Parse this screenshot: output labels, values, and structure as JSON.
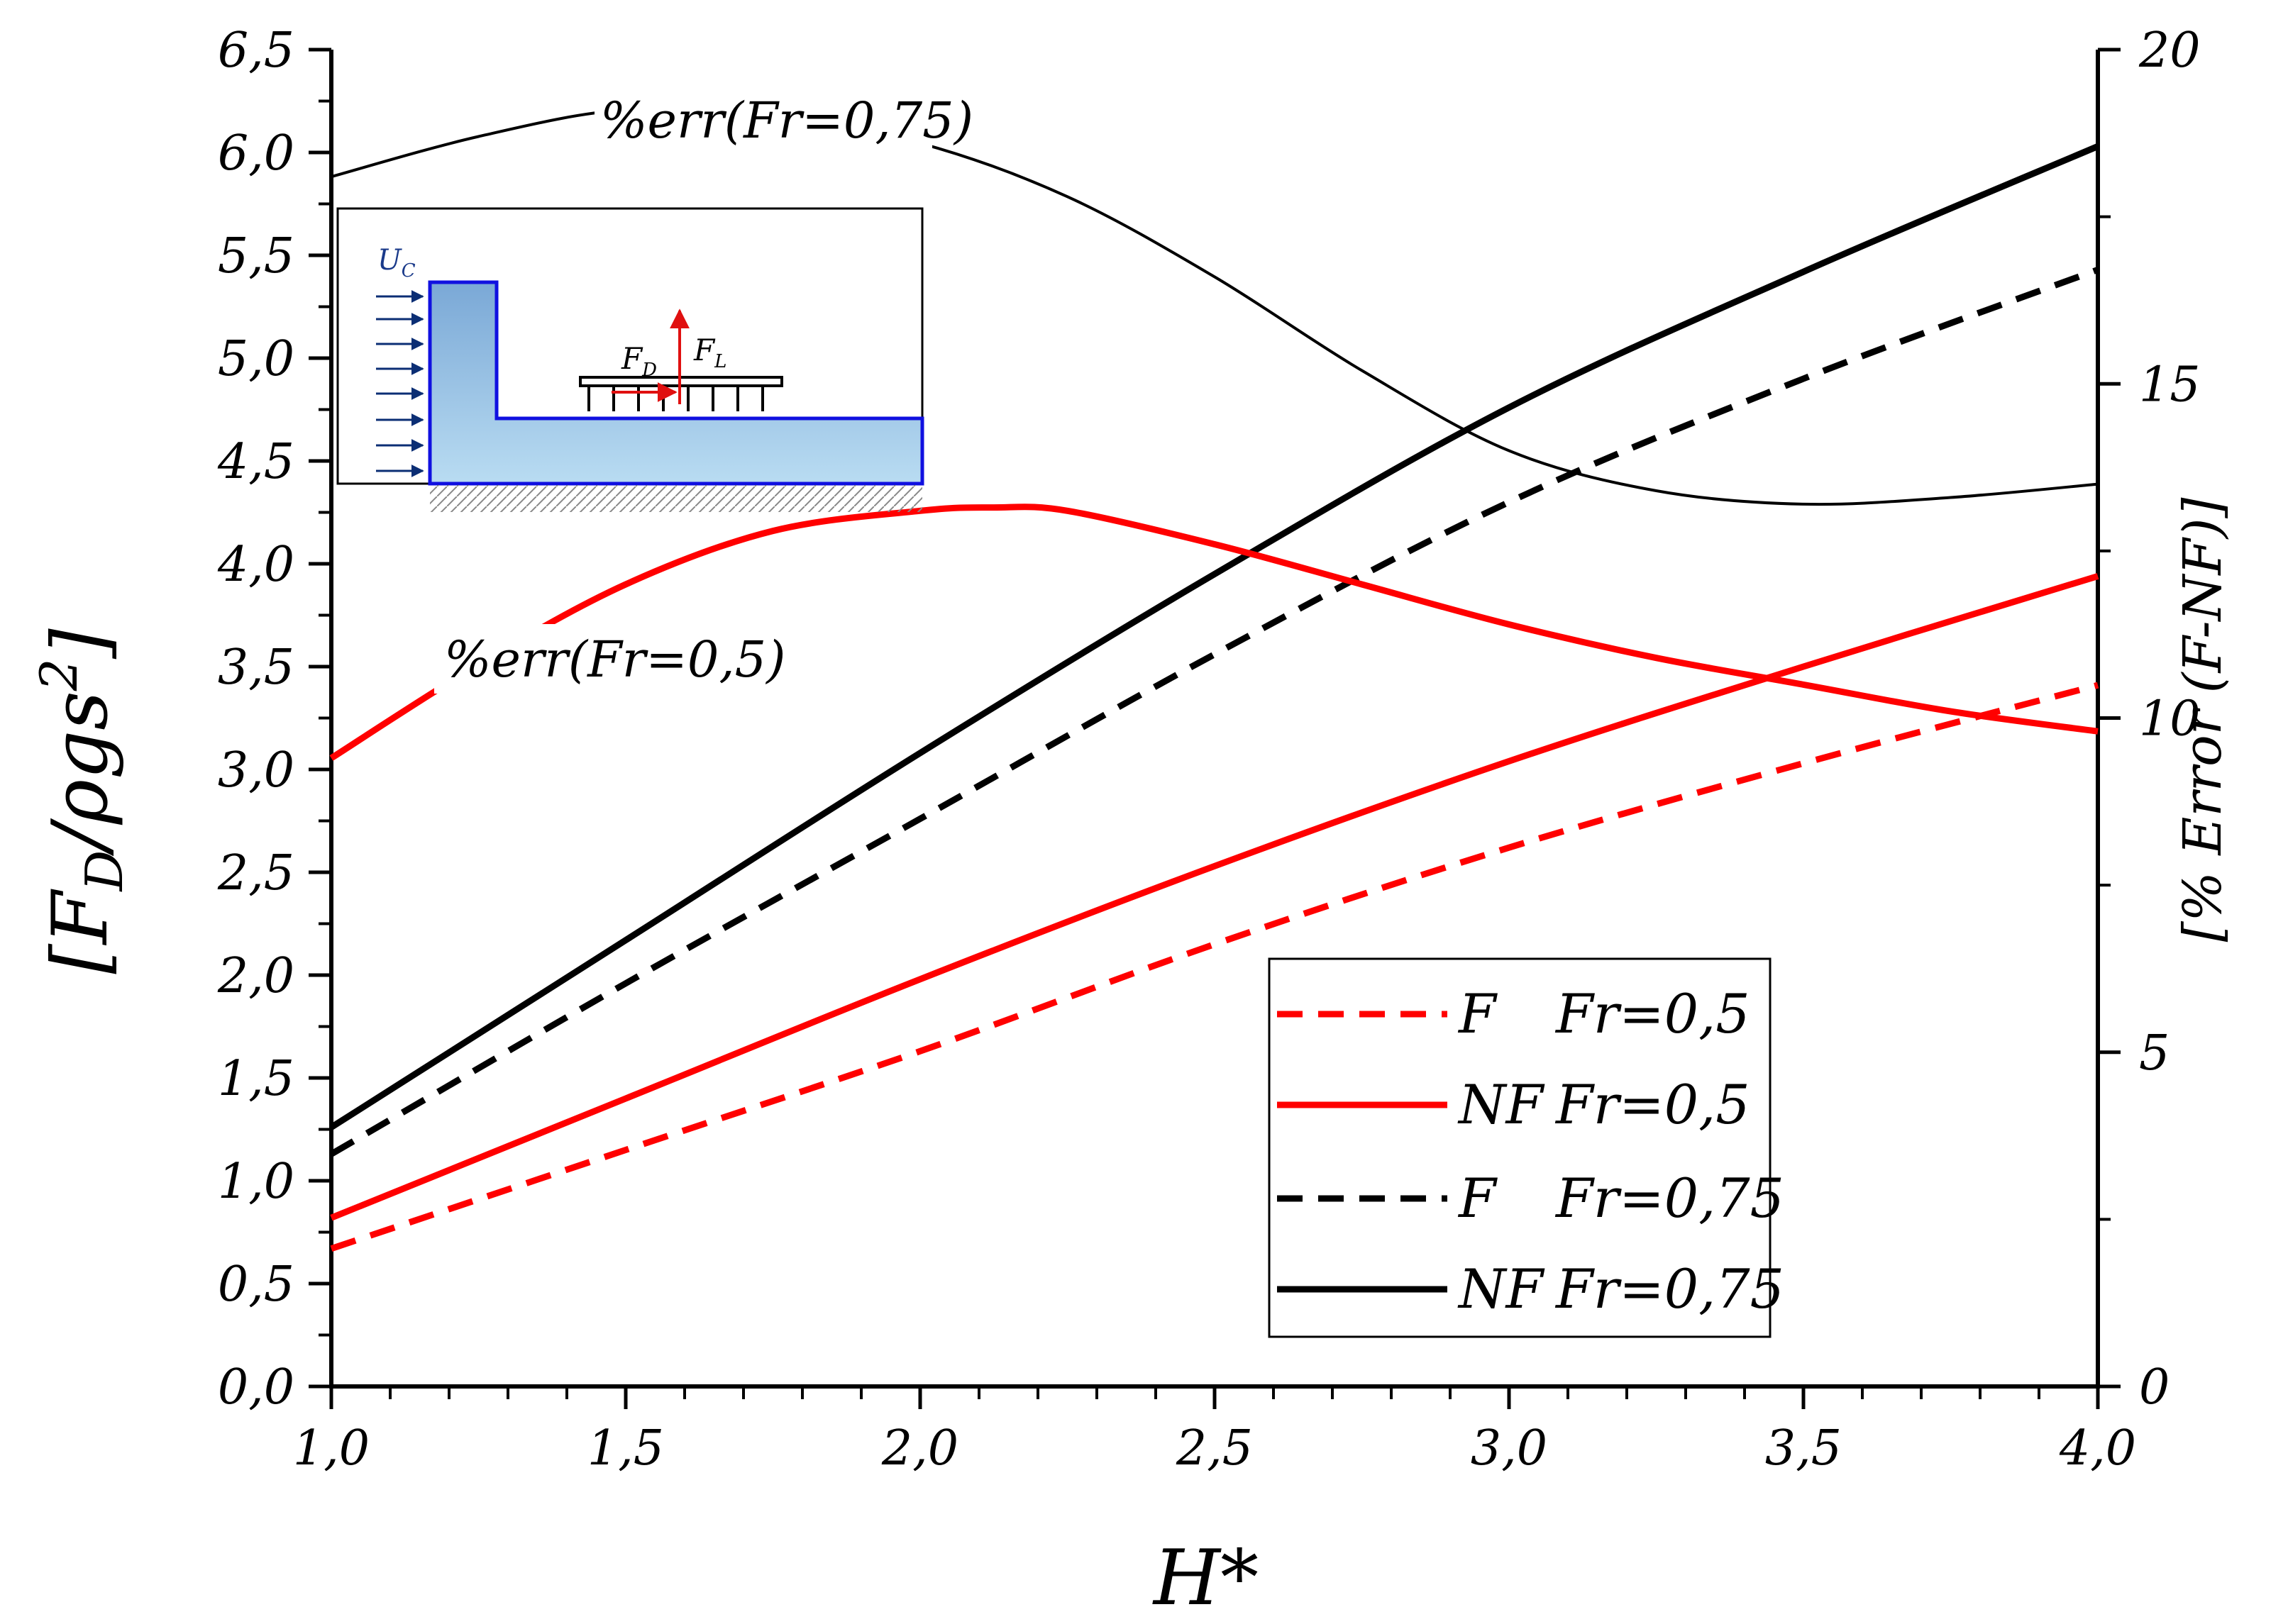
{
  "chart_data": {
    "type": "line",
    "title": "",
    "xlabel": "H*",
    "ylabel_left": [
      "[F",
      "D",
      "/ρgs",
      "2",
      "]"
    ],
    "ylabel_right": "[% Error (F-NF)]",
    "xlim": [
      1.0,
      4.0
    ],
    "ylim_left": [
      0.0,
      6.5
    ],
    "ylim_right": [
      0,
      20
    ],
    "x_ticks": [
      "1,0",
      "1,5",
      "2,0",
      "2,5",
      "3,0",
      "3,5",
      "4,0"
    ],
    "y_ticks_left": [
      "0,0",
      "0,5",
      "1,0",
      "1,5",
      "2,0",
      "2,5",
      "3,0",
      "3,5",
      "4,0",
      "4,5",
      "5,0",
      "5,5",
      "6,0",
      "6,5"
    ],
    "y_ticks_right": [
      "0",
      "5",
      "10",
      "15",
      "20"
    ],
    "grid": false,
    "legend_position": "bottom-right",
    "series": [
      {
        "name": "F Fr=0,5",
        "legend_a": "F",
        "legend_b": "Fr=0,5",
        "color": "#ff0000",
        "dash": true,
        "axis": "left",
        "x": [
          1.0,
          1.5,
          2.0,
          2.5,
          3.0,
          3.5,
          4.0
        ],
        "values": [
          0.67,
          1.15,
          1.63,
          2.15,
          2.62,
          3.03,
          3.41
        ]
      },
      {
        "name": "NF Fr=0,5",
        "legend_a": "NF",
        "legend_b": "Fr=0,5",
        "color": "#ff0000",
        "dash": false,
        "axis": "left",
        "x": [
          1.0,
          1.5,
          2.0,
          2.5,
          3.0,
          3.5,
          4.0
        ],
        "values": [
          0.82,
          1.4,
          1.98,
          2.53,
          3.04,
          3.5,
          3.94
        ]
      },
      {
        "name": "F Fr=0,75",
        "legend_a": "F",
        "legend_b": "Fr=0,75",
        "color": "#000000",
        "dash": true,
        "axis": "left",
        "x": [
          1.0,
          1.5,
          2.0,
          2.5,
          3.0,
          3.5,
          4.0
        ],
        "values": [
          1.13,
          1.96,
          2.76,
          3.56,
          4.3,
          4.9,
          5.43
        ]
      },
      {
        "name": "NF Fr=0,75",
        "legend_a": "NF",
        "legend_b": "Fr=0,75",
        "color": "#000000",
        "dash": false,
        "axis": "left",
        "x": [
          1.0,
          1.5,
          2.0,
          2.5,
          3.0,
          3.5,
          4.0
        ],
        "values": [
          1.26,
          2.17,
          3.08,
          3.95,
          4.76,
          5.42,
          6.03
        ]
      },
      {
        "name": "%err(Fr=0,75)",
        "color": "#000000",
        "dash": false,
        "axis": "right",
        "thin": true,
        "x": [
          1.0,
          1.25,
          1.5,
          1.75,
          2.0,
          2.25,
          2.5,
          2.75,
          3.0,
          3.25,
          3.5,
          3.75,
          4.0
        ],
        "values": [
          18.1,
          18.7,
          19.1,
          19.0,
          18.6,
          17.8,
          16.6,
          15.2,
          14.0,
          13.4,
          13.2,
          13.3,
          13.5
        ]
      },
      {
        "name": "%err(Fr=0,5)",
        "color": "#ff0000",
        "dash": false,
        "axis": "right",
        "x": [
          1.0,
          1.25,
          1.5,
          1.75,
          2.0,
          2.125,
          2.25,
          2.5,
          2.75,
          3.0,
          3.25,
          3.5,
          3.75,
          4.0
        ],
        "values": [
          9.4,
          10.8,
          12.0,
          12.8,
          13.1,
          13.15,
          13.1,
          12.6,
          12.0,
          11.4,
          10.9,
          10.5,
          10.1,
          9.8
        ]
      }
    ],
    "annotations": [
      {
        "text": "%err(Fr=0,75)",
        "series": "%err(Fr=0,75)"
      },
      {
        "text": "%err(Fr=0,5)",
        "series": "%err(Fr=0,5)"
      }
    ],
    "inset_labels": {
      "flow": "U",
      "flow_sub": "C",
      "drag": "F",
      "drag_sub": "D",
      "lift": "F",
      "lift_sub": "L"
    }
  }
}
